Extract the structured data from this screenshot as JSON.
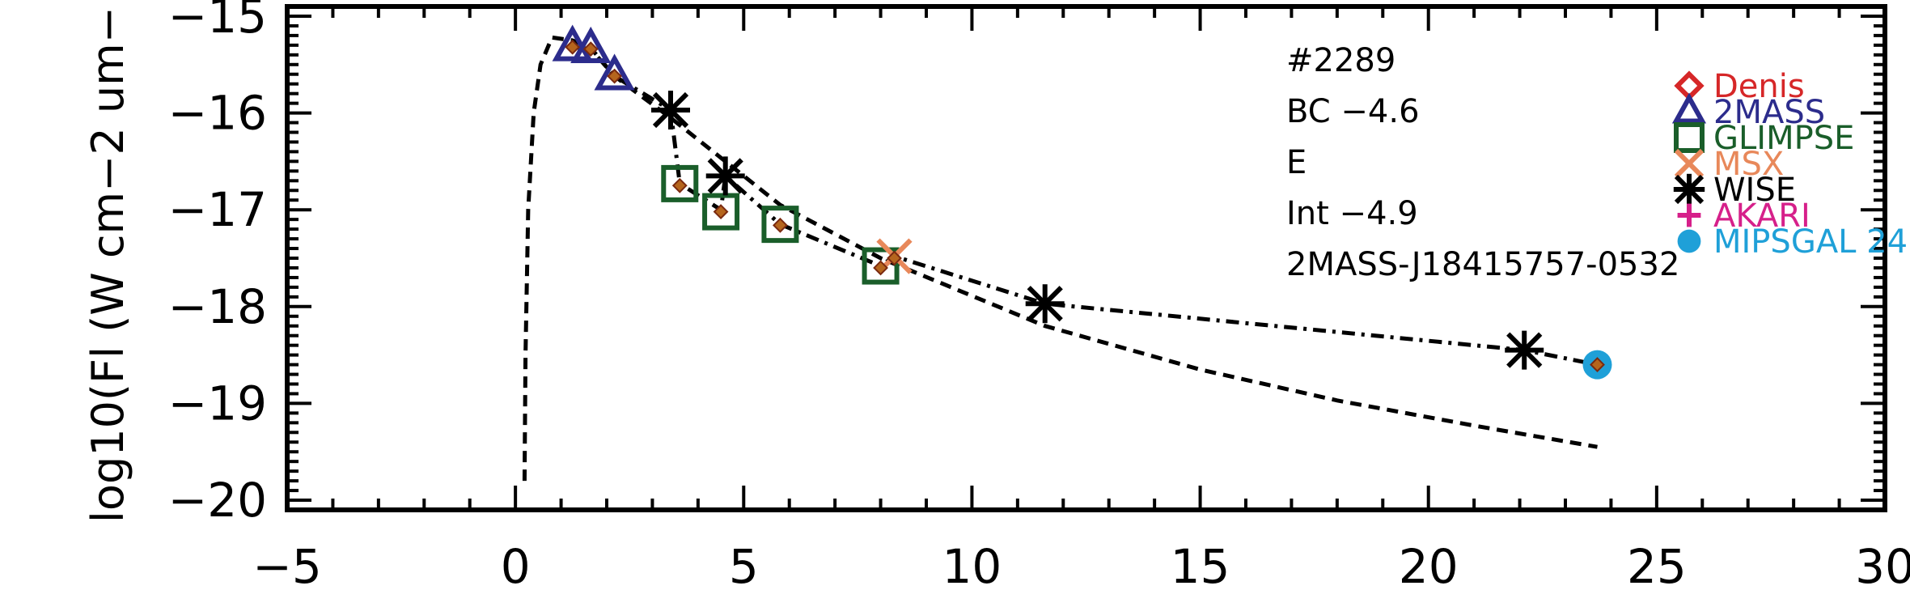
{
  "chart_data": {
    "type": "scatter",
    "xlabel": "",
    "ylabel": "log10(Fl (W cm−2 um−",
    "xlim": [
      -5,
      30
    ],
    "ylim": [
      -20.1,
      -14.9
    ],
    "x_ticks": [
      -5,
      0,
      5,
      10,
      15,
      20,
      25,
      30
    ],
    "x_tick_labels": [
      "−5",
      "0",
      "5",
      "10",
      "15",
      "20",
      "25",
      "30"
    ],
    "y_ticks": [
      -20,
      -19,
      -18,
      -17,
      -16,
      -15
    ],
    "y_tick_labels": [
      "−20",
      "−19",
      "−18",
      "−17",
      "−16",
      "−15"
    ],
    "annotations": [
      "#2289",
      "BC −4.6",
      "E",
      "Int −4.9",
      "2MASS-J18415757-0532"
    ],
    "legend": {
      "placement": "top-right",
      "entries": [
        {
          "label": "Denis",
          "marker": "diamond",
          "color": "#d62728"
        },
        {
          "label": "2MASS",
          "marker": "triangle",
          "color": "#2c2c8c"
        },
        {
          "label": "GLIMPSE",
          "marker": "square",
          "color": "#1a5e2a"
        },
        {
          "label": "MSX",
          "marker": "x",
          "color": "#e8885a"
        },
        {
          "label": "WISE",
          "marker": "asterisk",
          "color": "#000000"
        },
        {
          "label": "AKARI",
          "marker": "plus",
          "color": "#d6208a"
        },
        {
          "label": "MIPSGAL 24",
          "marker": "circle",
          "color": "#1fa0d8"
        }
      ]
    },
    "series": [
      {
        "name": "2MASS",
        "marker": "triangle",
        "color": "#2c2c8c",
        "points": [
          [
            1.25,
            -15.32
          ],
          [
            1.65,
            -15.34
          ],
          [
            2.17,
            -15.62
          ]
        ]
      },
      {
        "name": "GLIMPSE",
        "marker": "square",
        "color": "#1a5e2a",
        "points": [
          [
            3.6,
            -16.73
          ],
          [
            4.5,
            -17.02
          ],
          [
            5.8,
            -17.15
          ],
          [
            8.0,
            -17.58
          ]
        ]
      },
      {
        "name": "MSX",
        "marker": "x",
        "color": "#e8885a",
        "points": [
          [
            8.3,
            -17.48
          ]
        ]
      },
      {
        "name": "WISE",
        "marker": "asterisk",
        "color": "#000000",
        "points": [
          [
            3.4,
            -15.97
          ],
          [
            4.6,
            -16.65
          ],
          [
            11.6,
            -17.97
          ],
          [
            22.1,
            -18.45
          ]
        ]
      },
      {
        "name": "MIPSGAL 24",
        "marker": "circle",
        "color": "#1fa0d8",
        "points": [
          [
            23.7,
            -18.6
          ]
        ]
      }
    ],
    "small_diamonds": {
      "color": "#b5651d",
      "points": [
        [
          1.25,
          -15.32
        ],
        [
          1.65,
          -15.34
        ],
        [
          2.17,
          -15.62
        ],
        [
          3.6,
          -16.75
        ],
        [
          4.5,
          -17.02
        ],
        [
          5.8,
          -17.16
        ],
        [
          8.0,
          -17.6
        ],
        [
          8.3,
          -17.5
        ],
        [
          23.7,
          -18.6
        ]
      ]
    },
    "model_curves": [
      {
        "style": "dashed",
        "points": [
          [
            0.2,
            -19.8
          ],
          [
            0.22,
            -18.5
          ],
          [
            0.28,
            -17.0
          ],
          [
            0.4,
            -16.0
          ],
          [
            0.55,
            -15.5
          ],
          [
            0.8,
            -15.22
          ],
          [
            1.25,
            -15.25
          ],
          [
            1.65,
            -15.33
          ],
          [
            2.17,
            -15.62
          ],
          [
            3.4,
            -16.05
          ],
          [
            4.6,
            -16.5
          ],
          [
            5.8,
            -16.95
          ],
          [
            8.0,
            -17.5
          ],
          [
            11.6,
            -18.2
          ],
          [
            15.0,
            -18.65
          ],
          [
            18.0,
            -18.97
          ],
          [
            21.0,
            -19.23
          ],
          [
            23.7,
            -19.45
          ]
        ]
      },
      {
        "style": "dash-dot",
        "points": [
          [
            1.25,
            -15.32
          ],
          [
            1.65,
            -15.34
          ],
          [
            2.17,
            -15.62
          ],
          [
            3.4,
            -15.97
          ],
          [
            3.6,
            -16.73
          ],
          [
            4.5,
            -17.0
          ],
          [
            4.6,
            -16.65
          ],
          [
            5.8,
            -17.15
          ],
          [
            8.0,
            -17.58
          ],
          [
            8.3,
            -17.48
          ],
          [
            11.6,
            -17.97
          ],
          [
            22.1,
            -18.45
          ],
          [
            23.7,
            -18.6
          ]
        ]
      }
    ]
  }
}
